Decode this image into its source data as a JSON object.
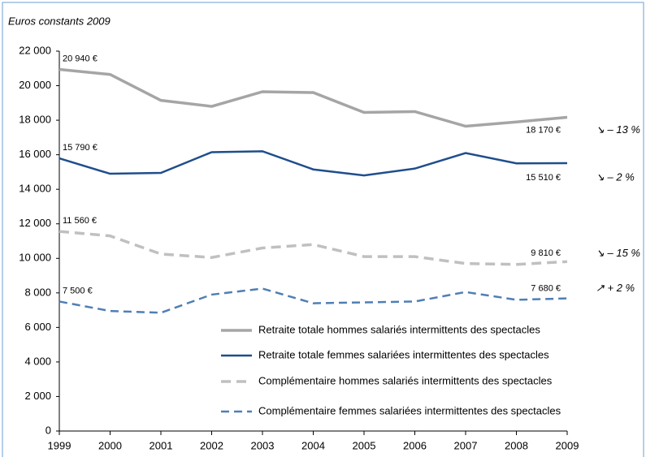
{
  "chart_data": {
    "type": "line",
    "y_label": "Euros constants 2009",
    "x": [
      1999,
      2000,
      2001,
      2002,
      2003,
      2004,
      2005,
      2006,
      2007,
      2008,
      2009
    ],
    "xlim": [
      1999,
      2009
    ],
    "xticks": [
      1999,
      2000,
      2001,
      2002,
      2003,
      2004,
      2005,
      2006,
      2007,
      2008,
      2009
    ],
    "ylim": [
      0,
      22000
    ],
    "yticks": [
      0,
      {
        "value": 2000,
        "label": "2 000"
      },
      {
        "value": 4000,
        "label": "4 000"
      },
      {
        "value": 6000,
        "label": "6 000"
      },
      {
        "value": 8000,
        "label": "8 000"
      },
      {
        "value": 10000,
        "label": "10 000"
      },
      {
        "value": 12000,
        "label": "12 000"
      },
      {
        "value": 14000,
        "label": "14 000"
      },
      {
        "value": 16000,
        "label": "16 000"
      },
      {
        "value": 18000,
        "label": "18 000"
      },
      {
        "value": 20000,
        "label": "20 000"
      },
      {
        "value": 22000,
        "label": "22 000"
      }
    ],
    "series": [
      {
        "name": "Retraite totale hommes salariés intermittents des spectacles",
        "color": "#a5a5a5",
        "dashed": false,
        "values": [
          20940,
          20650,
          19150,
          18800,
          19650,
          19600,
          18450,
          18500,
          17650,
          17900,
          18170
        ],
        "value_labels": [
          "20 940 €",
          null,
          null,
          null,
          null,
          null,
          null,
          null,
          null,
          null,
          "18 170 €"
        ],
        "change": "↘ – 13 %"
      },
      {
        "name": "Retraite totale femmes salariées intermittentes des spectacles",
        "color": "#1f4e8c",
        "dashed": false,
        "values": [
          15790,
          14900,
          14950,
          16150,
          16200,
          15150,
          14800,
          15200,
          16100,
          15500,
          15510
        ],
        "value_labels": [
          "15 790 €",
          null,
          null,
          null,
          null,
          null,
          null,
          null,
          null,
          null,
          "15 510 €"
        ],
        "change": "↘ – 2 %"
      },
      {
        "name": "Complémentaire hommes salariés intermittents des spectacles",
        "color": "#c0c0c0",
        "dashed": true,
        "values": [
          11560,
          11300,
          10250,
          10050,
          10600,
          10800,
          10100,
          10100,
          9700,
          9650,
          9810
        ],
        "value_labels": [
          "11 560 €",
          null,
          null,
          null,
          null,
          null,
          null,
          null,
          null,
          null,
          "9 810 €"
        ],
        "change": "↘ – 15 %"
      },
      {
        "name": "Complémentaire femmes salariées intermittentes des spectacles",
        "color": "#4f7fb5",
        "dashed": true,
        "values": [
          7500,
          6950,
          6850,
          7900,
          8250,
          7400,
          7450,
          7500,
          8050,
          7600,
          7680
        ],
        "value_labels": [
          "7 500 €",
          null,
          null,
          null,
          null,
          null,
          null,
          null,
          null,
          null,
          "7 680 €"
        ],
        "change": "↗ + 2 %"
      }
    ]
  }
}
